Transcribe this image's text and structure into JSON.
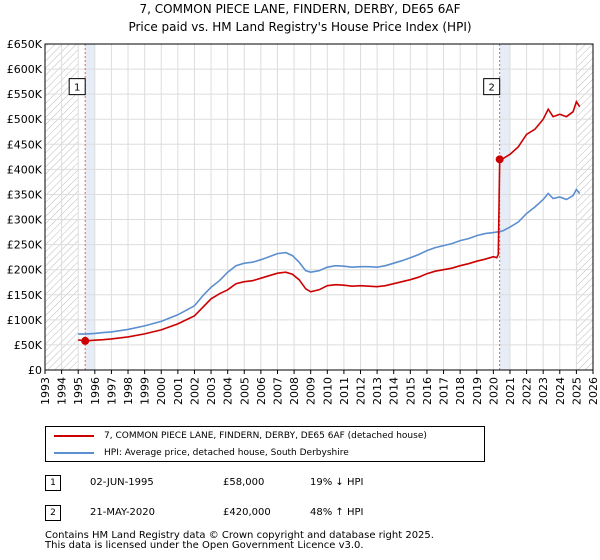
{
  "chart_data": {
    "type": "line",
    "title": "7, COMMON PIECE LANE, FINDERN, DERBY, DE65 6AF",
    "subtitle": "Price paid vs. HM Land Registry's House Price Index (HPI)",
    "xlim": [
      1993,
      2026
    ],
    "ylim": [
      0,
      650000
    ],
    "x_ticks": [
      "1993",
      "1994",
      "1995",
      "1996",
      "1997",
      "1998",
      "1999",
      "2000",
      "2001",
      "2002",
      "2003",
      "2004",
      "2005",
      "2006",
      "2007",
      "2008",
      "2009",
      "2010",
      "2011",
      "2012",
      "2013",
      "2014",
      "2015",
      "2016",
      "2017",
      "2018",
      "2019",
      "2020",
      "2021",
      "2022",
      "2023",
      "2024",
      "2025",
      "2026"
    ],
    "y_ticks": [
      {
        "value": 0,
        "label": "£0"
      },
      {
        "value": 50000,
        "label": "£50K"
      },
      {
        "value": 100000,
        "label": "£100K"
      },
      {
        "value": 150000,
        "label": "£150K"
      },
      {
        "value": 200000,
        "label": "£200K"
      },
      {
        "value": 250000,
        "label": "£250K"
      },
      {
        "value": 300000,
        "label": "£300K"
      },
      {
        "value": 350000,
        "label": "£350K"
      },
      {
        "value": 400000,
        "label": "£400K"
      },
      {
        "value": 450000,
        "label": "£450K"
      },
      {
        "value": 500000,
        "label": "£500K"
      },
      {
        "value": 550000,
        "label": "£550K"
      },
      {
        "value": 600000,
        "label": "£600K"
      },
      {
        "value": 650000,
        "label": "£650K"
      }
    ],
    "hatched_ranges": [
      [
        1993,
        1995.0
      ],
      [
        2025.0,
        2026
      ]
    ],
    "shaded_ranges": [
      [
        1995.42,
        1996.0
      ],
      [
        2020.38,
        2021.0
      ]
    ],
    "series": [
      {
        "name": "7, COMMON PIECE LANE, FINDERN, DERBY, DE65 6AF (detached house)",
        "color": "#cc0000",
        "points": [
          [
            1995.0,
            60000
          ],
          [
            1995.42,
            58000
          ],
          [
            1996.0,
            59500
          ],
          [
            1996.5,
            60500
          ],
          [
            1997.0,
            62000
          ],
          [
            1998.0,
            66000
          ],
          [
            1999.0,
            72000
          ],
          [
            2000.0,
            80000
          ],
          [
            2001.0,
            92000
          ],
          [
            2002.0,
            108000
          ],
          [
            2002.5,
            125000
          ],
          [
            2003.0,
            142000
          ],
          [
            2003.5,
            152000
          ],
          [
            2004.0,
            160000
          ],
          [
            2004.5,
            172000
          ],
          [
            2005.0,
            176000
          ],
          [
            2005.5,
            178000
          ],
          [
            2006.0,
            183000
          ],
          [
            2006.5,
            188000
          ],
          [
            2007.0,
            193000
          ],
          [
            2007.5,
            195000
          ],
          [
            2007.9,
            191000
          ],
          [
            2008.3,
            180000
          ],
          [
            2008.7,
            162000
          ],
          [
            2009.0,
            156000
          ],
          [
            2009.5,
            160000
          ],
          [
            2010.0,
            168000
          ],
          [
            2010.5,
            170000
          ],
          [
            2011.0,
            169000
          ],
          [
            2011.5,
            167000
          ],
          [
            2012.0,
            168000
          ],
          [
            2012.5,
            167000
          ],
          [
            2013.0,
            166000
          ],
          [
            2013.5,
            168000
          ],
          [
            2014.0,
            172000
          ],
          [
            2014.5,
            176000
          ],
          [
            2015.0,
            180000
          ],
          [
            2015.5,
            185000
          ],
          [
            2016.0,
            192000
          ],
          [
            2016.5,
            197000
          ],
          [
            2017.0,
            200000
          ],
          [
            2017.5,
            203000
          ],
          [
            2018.0,
            208000
          ],
          [
            2018.5,
            212000
          ],
          [
            2019.0,
            217000
          ],
          [
            2019.5,
            221000
          ],
          [
            2020.0,
            226000
          ],
          [
            2020.2,
            224000
          ],
          [
            2020.3,
            230000
          ],
          [
            2020.38,
            420000
          ],
          [
            2020.6,
            422000
          ],
          [
            2021.0,
            430000
          ],
          [
            2021.5,
            445000
          ],
          [
            2022.0,
            470000
          ],
          [
            2022.5,
            480000
          ],
          [
            2023.0,
            500000
          ],
          [
            2023.3,
            520000
          ],
          [
            2023.6,
            505000
          ],
          [
            2024.0,
            510000
          ],
          [
            2024.4,
            505000
          ],
          [
            2024.8,
            515000
          ],
          [
            2025.0,
            535000
          ],
          [
            2025.2,
            525000
          ]
        ]
      },
      {
        "name": "HPI: Average price, detached house, South Derbyshire",
        "color": "#5b8fcf",
        "points": [
          [
            1995.0,
            72000
          ],
          [
            1995.42,
            71500
          ],
          [
            1996.0,
            73000
          ],
          [
            1996.5,
            74500
          ],
          [
            1997.0,
            76000
          ],
          [
            1998.0,
            81000
          ],
          [
            1999.0,
            88000
          ],
          [
            2000.0,
            97000
          ],
          [
            2001.0,
            110000
          ],
          [
            2002.0,
            128000
          ],
          [
            2002.5,
            148000
          ],
          [
            2003.0,
            165000
          ],
          [
            2003.5,
            178000
          ],
          [
            2004.0,
            195000
          ],
          [
            2004.5,
            208000
          ],
          [
            2005.0,
            213000
          ],
          [
            2005.5,
            215000
          ],
          [
            2006.0,
            220000
          ],
          [
            2006.5,
            226000
          ],
          [
            2007.0,
            232000
          ],
          [
            2007.5,
            234000
          ],
          [
            2007.9,
            228000
          ],
          [
            2008.3,
            215000
          ],
          [
            2008.7,
            198000
          ],
          [
            2009.0,
            195000
          ],
          [
            2009.5,
            198000
          ],
          [
            2010.0,
            205000
          ],
          [
            2010.5,
            208000
          ],
          [
            2011.0,
            207000
          ],
          [
            2011.5,
            205000
          ],
          [
            2012.0,
            206000
          ],
          [
            2012.5,
            206000
          ],
          [
            2013.0,
            205000
          ],
          [
            2013.5,
            208000
          ],
          [
            2014.0,
            213000
          ],
          [
            2014.5,
            218000
          ],
          [
            2015.0,
            224000
          ],
          [
            2015.5,
            230000
          ],
          [
            2016.0,
            238000
          ],
          [
            2016.5,
            244000
          ],
          [
            2017.0,
            248000
          ],
          [
            2017.5,
            252000
          ],
          [
            2018.0,
            258000
          ],
          [
            2018.5,
            262000
          ],
          [
            2019.0,
            268000
          ],
          [
            2019.5,
            272000
          ],
          [
            2020.0,
            274000
          ],
          [
            2020.38,
            276000
          ],
          [
            2020.6,
            278000
          ],
          [
            2021.0,
            285000
          ],
          [
            2021.5,
            295000
          ],
          [
            2022.0,
            312000
          ],
          [
            2022.5,
            325000
          ],
          [
            2023.0,
            340000
          ],
          [
            2023.3,
            352000
          ],
          [
            2023.6,
            342000
          ],
          [
            2024.0,
            345000
          ],
          [
            2024.4,
            340000
          ],
          [
            2024.8,
            348000
          ],
          [
            2025.0,
            360000
          ],
          [
            2025.2,
            352000
          ]
        ]
      }
    ],
    "sales": [
      {
        "id": "1",
        "x": 1995.42,
        "y": 58000
      },
      {
        "id": "2",
        "x": 2020.38,
        "y": 420000
      }
    ],
    "sale_label_y": 565000
  },
  "legend": {
    "red_label": "7, COMMON PIECE LANE, FINDERN, DERBY, DE65 6AF (detached house)",
    "blue_label": "HPI: Average price, detached house, South Derbyshire",
    "red_color": "#cc0000",
    "blue_color": "#5b8fcf"
  },
  "sales_table": [
    {
      "id": "1",
      "date": "02-JUN-1995",
      "price": "£58,000",
      "hpi": "19% ↓ HPI"
    },
    {
      "id": "2",
      "date": "21-MAY-2020",
      "price": "£420,000",
      "hpi": "48% ↑ HPI"
    }
  ],
  "footer": {
    "line1": "Contains HM Land Registry data © Crown copyright and database right 2025.",
    "line2": "This data is licensed under the Open Government Licence v3.0."
  }
}
